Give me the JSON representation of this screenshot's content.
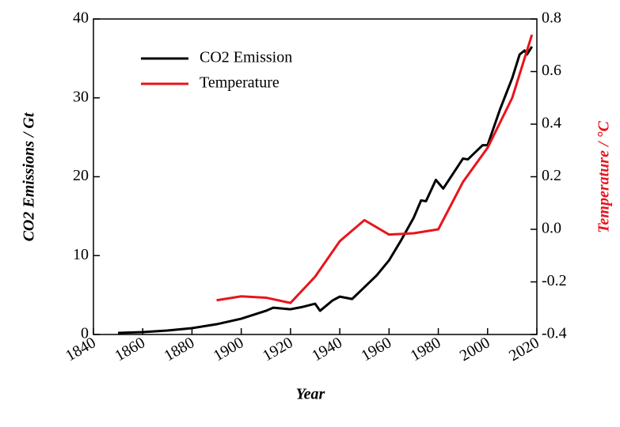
{
  "chart_data": {
    "type": "line",
    "xlabel": "Year",
    "ylabel": "CO2 Emissions / Gt",
    "y2label": "Temperature / °C",
    "xlim": [
      1840,
      2020
    ],
    "xticks": [
      1840,
      1860,
      1880,
      1900,
      1920,
      1940,
      1960,
      1980,
      2000,
      2020
    ],
    "ylim": [
      0,
      40
    ],
    "yticks": [
      0,
      10,
      20,
      30,
      40
    ],
    "y2lim": [
      -0.4,
      0.8
    ],
    "y2ticks": [
      -0.4,
      -0.2,
      {
        "value": 0,
        "label": "0.0"
      },
      0.2,
      0.4,
      0.6,
      0.8
    ],
    "y2color": "#e8141c",
    "series": [
      {
        "name": "CO2 Emission",
        "color": "#000000",
        "x": [
          1850,
          1860,
          1870,
          1880,
          1890,
          1900,
          1910,
          1913,
          1920,
          1925,
          1930,
          1932,
          1937,
          1940,
          1945,
          1950,
          1955,
          1960,
          1965,
          1970,
          1973,
          1975,
          1979,
          1982,
          1990,
          1992,
          1998,
          2000,
          2005,
          2010,
          2013,
          2015,
          2016,
          2018
        ],
        "values": [
          0.2,
          0.3,
          0.5,
          0.8,
          1.3,
          2.0,
          3.0,
          3.4,
          3.2,
          3.5,
          3.9,
          3.0,
          4.3,
          4.8,
          4.5,
          6.0,
          7.5,
          9.4,
          12.0,
          14.8,
          17.0,
          16.9,
          19.6,
          18.5,
          22.3,
          22.2,
          24.0,
          24.0,
          28.5,
          32.5,
          35.5,
          36.0,
          35.5,
          36.5
        ]
      },
      {
        "name": "Temperature",
        "color": "#e8141c",
        "axis": "y2",
        "x": [
          1890,
          1900,
          1910,
          1920,
          1930,
          1940,
          1950,
          1960,
          1970,
          1980,
          1990,
          2000,
          2010,
          2018
        ],
        "values": [
          -0.27,
          -0.255,
          -0.26,
          -0.28,
          -0.18,
          -0.045,
          0.035,
          -0.02,
          -0.015,
          0.0,
          0.18,
          0.31,
          0.5,
          0.74
        ]
      }
    ]
  }
}
